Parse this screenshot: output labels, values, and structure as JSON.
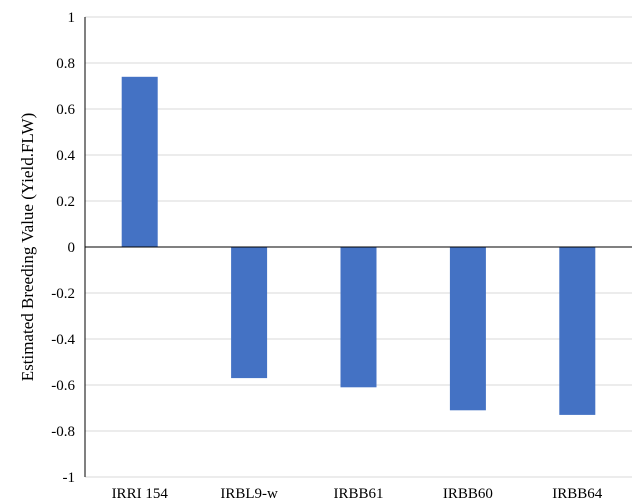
{
  "chart_data": {
    "type": "bar",
    "title": "",
    "xlabel": "",
    "ylabel": "Estimated Breeding Value (Yield.FLW)",
    "categories": [
      "IRRI 154",
      "IRBL9-w",
      "IRBB61",
      "IRBB60",
      "IRBB64"
    ],
    "values": [
      0.74,
      -0.57,
      -0.61,
      -0.71,
      -0.73
    ],
    "ylim": [
      -1,
      1
    ],
    "yticks": [
      1,
      0.8,
      0.6,
      0.4,
      0.2,
      0,
      -0.2,
      -0.4,
      -0.6,
      -0.8,
      -1
    ],
    "ytick_labels": [
      "1",
      "0.8",
      "0.6",
      "0.4",
      "0.2",
      "0",
      "-0.2",
      "-0.4",
      "-0.6",
      "-0.8",
      "-1"
    ],
    "grid": true,
    "legend": "none",
    "colors": {
      "bar": "#4472C4",
      "grid": "#D9D9D9",
      "axis": "#000000"
    }
  }
}
